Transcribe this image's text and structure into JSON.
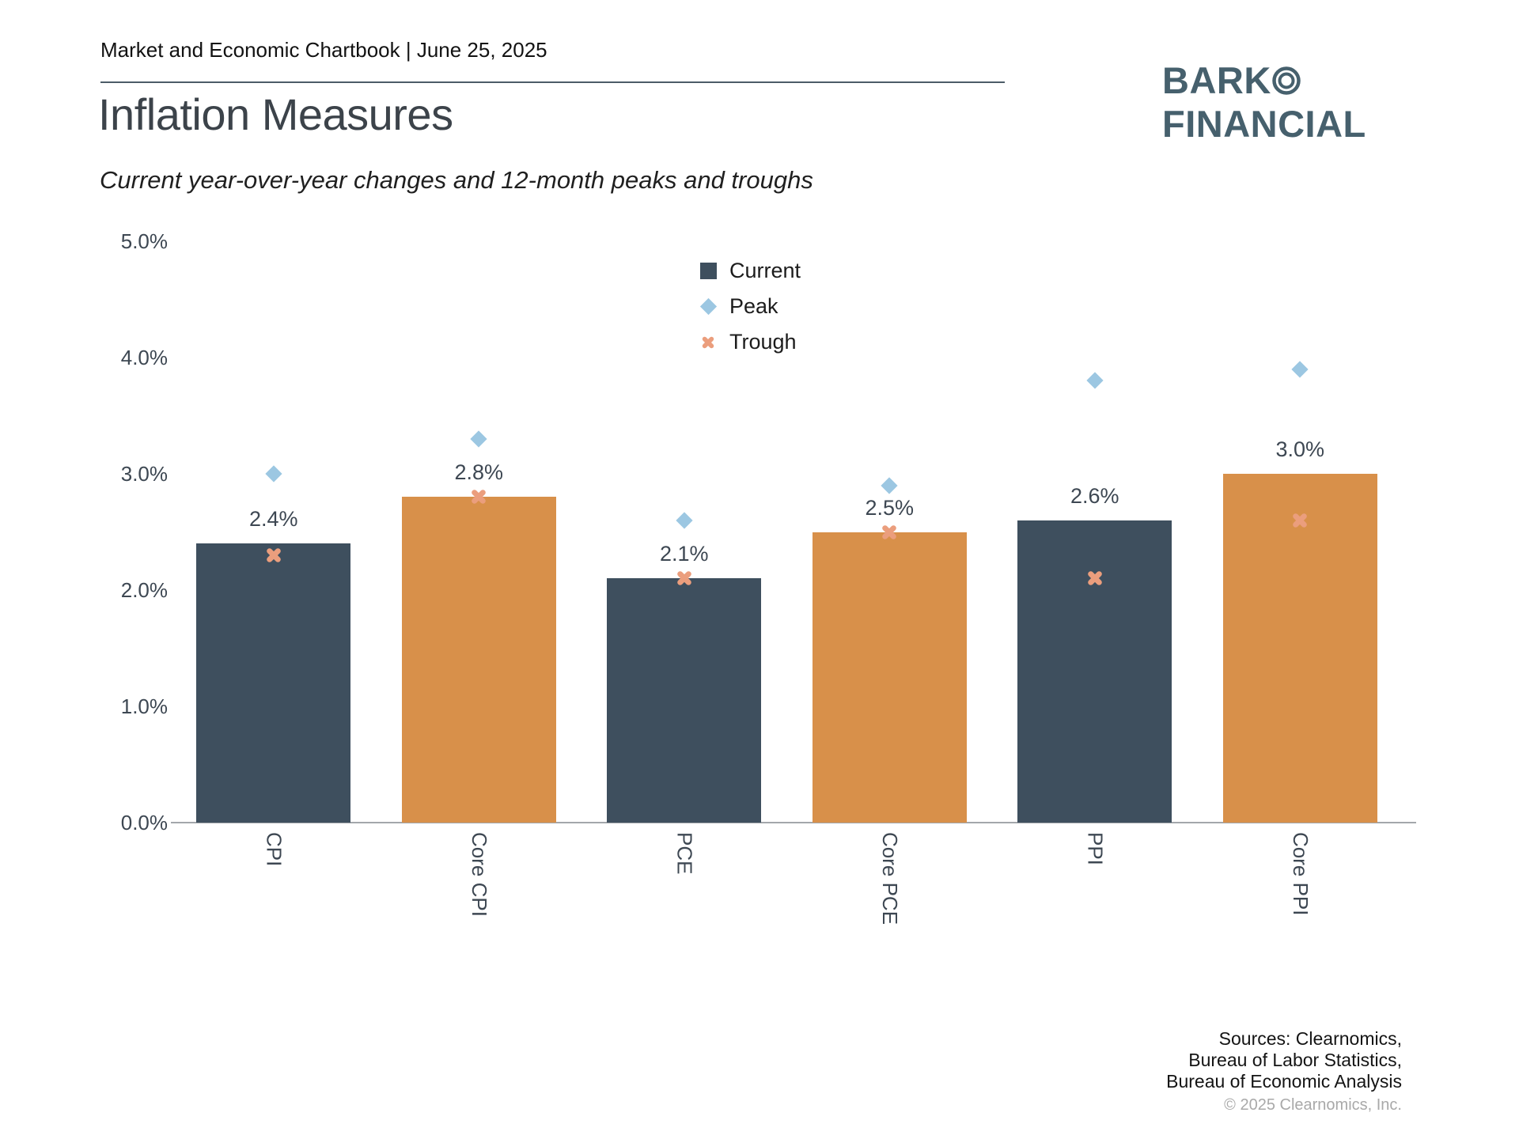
{
  "header": {
    "meta": "Market and Economic Chartbook | June 25, 2025",
    "title": "Inflation Measures",
    "subtitle": "Current year-over-year changes and 12-month peaks and troughs"
  },
  "logo": {
    "line1": "BARK",
    "line2": "FINANCIAL"
  },
  "legend": {
    "items": [
      {
        "label": "Current",
        "marker": "square",
        "color": "#3e4f5e"
      },
      {
        "label": "Peak",
        "marker": "diamond",
        "color": "#9cc7e2"
      },
      {
        "label": "Trough",
        "marker": "x",
        "color": "#eb9e7d"
      }
    ]
  },
  "chart_data": {
    "type": "bar",
    "categories": [
      "CPI",
      "Core CPI",
      "PCE",
      "Core PCE",
      "PPI",
      "Core PPI"
    ],
    "series": [
      {
        "name": "Current",
        "type": "bar",
        "values": [
          2.4,
          2.8,
          2.1,
          2.5,
          2.6,
          3.0
        ],
        "labels": [
          "2.4%",
          "2.8%",
          "2.1%",
          "2.5%",
          "2.6%",
          "3.0%"
        ]
      },
      {
        "name": "Peak",
        "type": "scatter",
        "marker": "diamond",
        "color": "#9cc7e2",
        "values": [
          3.0,
          3.3,
          2.6,
          2.9,
          3.8,
          3.9
        ]
      },
      {
        "name": "Trough",
        "type": "scatter",
        "marker": "x",
        "color": "#eb9e7d",
        "values": [
          2.3,
          2.8,
          2.1,
          2.5,
          2.1,
          2.6
        ]
      }
    ],
    "bar_colors": [
      "#3e4f5e",
      "#d8904a",
      "#3e4f5e",
      "#d8904a",
      "#3e4f5e",
      "#d8904a"
    ],
    "ylim": [
      0,
      5
    ],
    "yticks": [
      "0.0%",
      "1.0%",
      "2.0%",
      "3.0%",
      "4.0%",
      "5.0%"
    ],
    "grid": false,
    "legend_position": "top-center"
  },
  "footer": {
    "sources": [
      "Sources: Clearnomics,",
      "Bureau of Labor Statistics,",
      "Bureau of Economic Analysis"
    ],
    "copyright": "© 2025 Clearnomics, Inc."
  },
  "colors": {
    "bar_dark": "#3e4f5e",
    "bar_orange": "#d8904a",
    "peak_marker": "#9cc7e2",
    "trough_marker": "#eb9e7d",
    "logo": "#46606d",
    "axis_line": "#a3a7ab",
    "label_text": "#3d4752"
  }
}
